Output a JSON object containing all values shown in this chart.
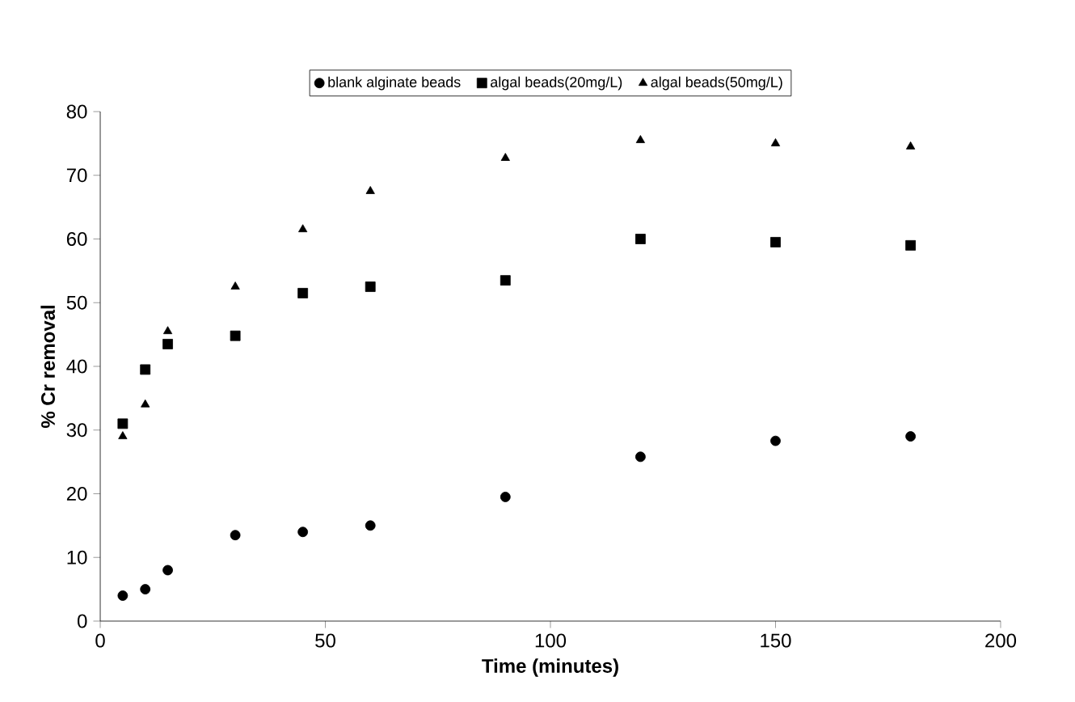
{
  "chart_data": {
    "type": "scatter",
    "xlabel": "Time (minutes)",
    "ylabel": "% Cr removal",
    "x": [
      5,
      10,
      15,
      30,
      45,
      60,
      90,
      120,
      150,
      180
    ],
    "series": [
      {
        "name": "blank alginate beads",
        "color": "#000000",
        "marker": "circle",
        "values": [
          4,
          5,
          8,
          13.5,
          14,
          15,
          19.5,
          25.8,
          28.3,
          29
        ]
      },
      {
        "name": "algal beads(20mg/L)",
        "color": "#000000",
        "marker": "square",
        "values": [
          31,
          39.5,
          43.5,
          44.8,
          51.5,
          52.5,
          53.5,
          60,
          59.5,
          59
        ]
      },
      {
        "name": "algal beads(50mg/L)",
        "color": "#000000",
        "marker": "triangle",
        "values": [
          29,
          34,
          45.5,
          52.5,
          61.5,
          67.5,
          72.7,
          75.5,
          75,
          74.5
        ]
      }
    ],
    "xlim": [
      0,
      200
    ],
    "xticks": [
      0,
      50,
      100,
      150,
      200
    ],
    "ylim": [
      0,
      80
    ],
    "yticks": [
      0,
      10,
      20,
      30,
      40,
      50,
      60,
      70,
      80
    ],
    "legend": "top",
    "grid": false
  }
}
